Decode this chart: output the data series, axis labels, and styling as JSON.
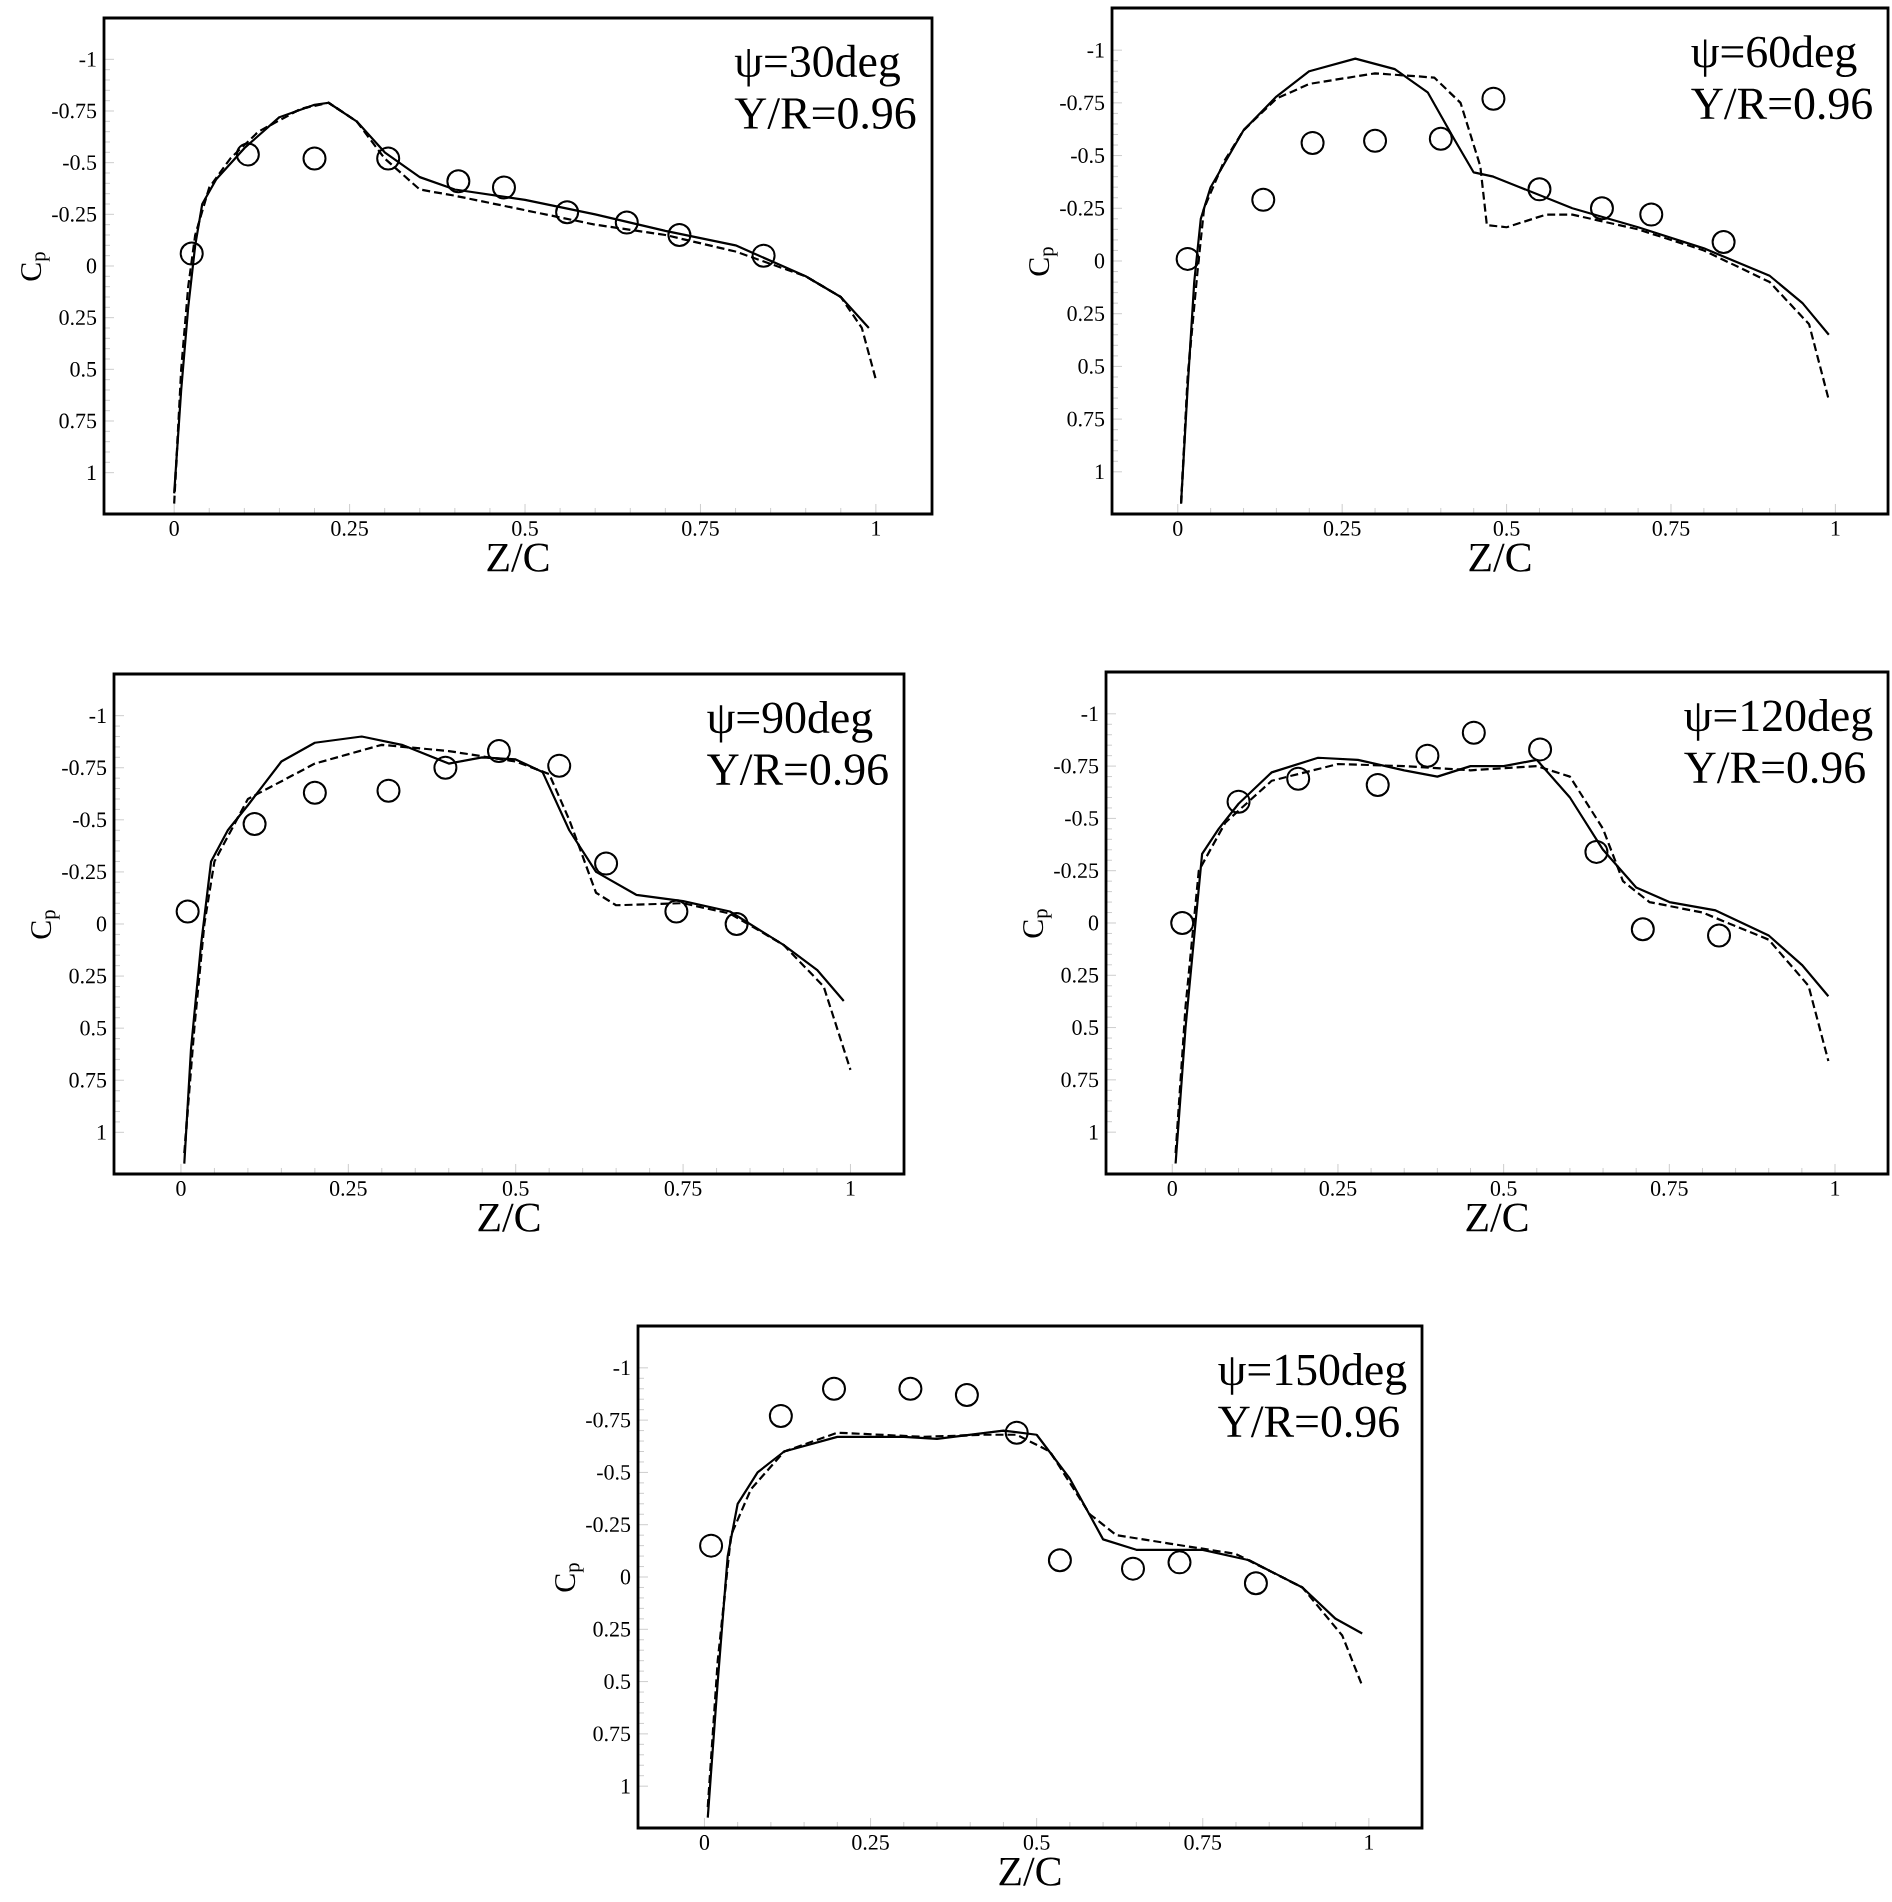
{
  "chart_data": [
    {
      "type": "line",
      "xlabel": "Z/C",
      "ylabel": "C$_{p}$",
      "xlim": [
        -0.1,
        1.08
      ],
      "ylim": [
        1.2,
        -1.2
      ],
      "xticks": [
        0,
        0.25,
        0.5,
        0.75,
        1
      ],
      "yticks": [
        -1,
        -0.75,
        -0.5,
        -0.25,
        0,
        0.25,
        0.5,
        0.75,
        1
      ],
      "annotations": [
        "ψ=30deg",
        "Y/R=0.96"
      ],
      "series": [
        {
          "type": "line",
          "line_style": "solid",
          "color": "#000000",
          "x": [
            0.0,
            0.01,
            0.02,
            0.03,
            0.04,
            0.06,
            0.1,
            0.15,
            0.2,
            0.22,
            0.26,
            0.3,
            0.35,
            0.4,
            0.5,
            0.6,
            0.7,
            0.8,
            0.9,
            0.95,
            0.99
          ],
          "values": [
            1.1,
            0.6,
            0.2,
            -0.1,
            -0.3,
            -0.42,
            -0.57,
            -0.72,
            -0.78,
            -0.79,
            -0.7,
            -0.55,
            -0.43,
            -0.37,
            -0.32,
            -0.25,
            -0.17,
            -0.1,
            0.05,
            0.15,
            0.3
          ]
        },
        {
          "type": "line",
          "line_style": "dashed",
          "color": "#000000",
          "x": [
            0.0,
            0.01,
            0.02,
            0.03,
            0.05,
            0.08,
            0.12,
            0.18,
            0.22,
            0.26,
            0.3,
            0.35,
            0.4,
            0.5,
            0.6,
            0.7,
            0.8,
            0.9,
            0.95,
            0.98,
            1.0
          ],
          "values": [
            1.15,
            0.5,
            0.1,
            -0.15,
            -0.38,
            -0.52,
            -0.65,
            -0.76,
            -0.79,
            -0.7,
            -0.52,
            -0.37,
            -0.34,
            -0.27,
            -0.2,
            -0.15,
            -0.07,
            0.05,
            0.15,
            0.3,
            0.55
          ]
        },
        {
          "type": "scatter",
          "marker": "circle",
          "color": "#000000",
          "x": [
            0.025,
            0.105,
            0.2,
            0.305,
            0.405,
            0.47,
            0.56,
            0.645,
            0.72,
            0.84
          ],
          "values": [
            -0.06,
            -0.54,
            -0.52,
            -0.52,
            -0.41,
            -0.38,
            -0.26,
            -0.21,
            -0.15,
            -0.05
          ]
        }
      ]
    },
    {
      "type": "line",
      "xlabel": "Z/C",
      "ylabel": "C$_{p}$",
      "xlim": [
        -0.1,
        1.08
      ],
      "ylim": [
        1.2,
        -1.2
      ],
      "xticks": [
        0,
        0.25,
        0.5,
        0.75,
        1
      ],
      "yticks": [
        -1,
        -0.75,
        -0.5,
        -0.25,
        0,
        0.25,
        0.5,
        0.75,
        1
      ],
      "annotations": [
        "ψ=60deg",
        "Y/R=0.96"
      ],
      "series": [
        {
          "type": "line",
          "line_style": "solid",
          "color": "#000000",
          "x": [
            0.005,
            0.015,
            0.025,
            0.035,
            0.05,
            0.1,
            0.15,
            0.2,
            0.27,
            0.33,
            0.38,
            0.42,
            0.45,
            0.48,
            0.52,
            0.6,
            0.7,
            0.8,
            0.9,
            0.95,
            0.99
          ],
          "values": [
            1.15,
            0.6,
            0.1,
            -0.2,
            -0.35,
            -0.62,
            -0.78,
            -0.9,
            -0.96,
            -0.91,
            -0.8,
            -0.58,
            -0.42,
            -0.4,
            -0.35,
            -0.25,
            -0.16,
            -0.06,
            0.07,
            0.2,
            0.35
          ]
        },
        {
          "type": "line",
          "line_style": "dashed",
          "color": "#000000",
          "x": [
            0.005,
            0.015,
            0.03,
            0.04,
            0.07,
            0.1,
            0.15,
            0.2,
            0.3,
            0.39,
            0.43,
            0.46,
            0.47,
            0.5,
            0.56,
            0.6,
            0.7,
            0.8,
            0.9,
            0.96,
            0.99
          ],
          "values": [
            1.15,
            0.55,
            0.05,
            -0.25,
            -0.47,
            -0.62,
            -0.77,
            -0.84,
            -0.89,
            -0.87,
            -0.75,
            -0.45,
            -0.17,
            -0.16,
            -0.22,
            -0.22,
            -0.15,
            -0.05,
            0.1,
            0.3,
            0.66
          ]
        },
        {
          "type": "scatter",
          "marker": "circle",
          "color": "#000000",
          "x": [
            0.015,
            0.13,
            0.205,
            0.3,
            0.4,
            0.48,
            0.55,
            0.645,
            0.72,
            0.83
          ],
          "values": [
            -0.01,
            -0.29,
            -0.56,
            -0.57,
            -0.58,
            -0.77,
            -0.34,
            -0.25,
            -0.22,
            -0.09
          ]
        }
      ]
    },
    {
      "type": "line",
      "xlabel": "Z/C",
      "ylabel": "C$_{p}$",
      "xlim": [
        -0.1,
        1.08
      ],
      "ylim": [
        1.2,
        -1.2
      ],
      "xticks": [
        0,
        0.25,
        0.5,
        0.75,
        1
      ],
      "yticks": [
        -1,
        -0.75,
        -0.5,
        -0.25,
        0,
        0.25,
        0.5,
        0.75,
        1
      ],
      "annotations": [
        "ψ=90deg",
        "Y/R=0.96"
      ],
      "series": [
        {
          "type": "line",
          "line_style": "solid",
          "color": "#000000",
          "x": [
            0.005,
            0.015,
            0.03,
            0.045,
            0.07,
            0.1,
            0.15,
            0.2,
            0.27,
            0.33,
            0.4,
            0.45,
            0.5,
            0.54,
            0.58,
            0.62,
            0.68,
            0.75,
            0.82,
            0.9,
            0.95,
            0.99
          ],
          "values": [
            1.15,
            0.6,
            0.1,
            -0.3,
            -0.45,
            -0.57,
            -0.78,
            -0.87,
            -0.9,
            -0.86,
            -0.77,
            -0.8,
            -0.79,
            -0.73,
            -0.45,
            -0.25,
            -0.14,
            -0.11,
            -0.06,
            0.1,
            0.22,
            0.37
          ]
        },
        {
          "type": "line",
          "line_style": "dashed",
          "color": "#000000",
          "x": [
            0.005,
            0.02,
            0.035,
            0.05,
            0.1,
            0.2,
            0.3,
            0.4,
            0.5,
            0.55,
            0.58,
            0.62,
            0.65,
            0.75,
            0.82,
            0.9,
            0.96,
            1.0
          ],
          "values": [
            1.1,
            0.5,
            0.0,
            -0.3,
            -0.6,
            -0.77,
            -0.86,
            -0.83,
            -0.78,
            -0.72,
            -0.5,
            -0.15,
            -0.09,
            -0.1,
            -0.05,
            0.1,
            0.3,
            0.7
          ]
        },
        {
          "type": "scatter",
          "marker": "circle",
          "color": "#000000",
          "x": [
            0.01,
            0.11,
            0.2,
            0.31,
            0.395,
            0.475,
            0.565,
            0.635,
            0.74,
            0.83
          ],
          "values": [
            -0.06,
            -0.48,
            -0.63,
            -0.64,
            -0.75,
            -0.83,
            -0.76,
            -0.29,
            -0.06,
            0.0
          ]
        }
      ]
    },
    {
      "type": "line",
      "xlabel": "Z/C",
      "ylabel": "C$_{p}$",
      "xlim": [
        -0.1,
        1.08
      ],
      "ylim": [
        1.2,
        -1.2
      ],
      "xticks": [
        0,
        0.25,
        0.5,
        0.75,
        1
      ],
      "yticks": [
        -1,
        -0.75,
        -0.5,
        -0.25,
        0,
        0.25,
        0.5,
        0.75,
        1
      ],
      "annotations": [
        "ψ=120deg",
        "Y/R=0.96"
      ],
      "series": [
        {
          "type": "line",
          "line_style": "solid",
          "color": "#000000",
          "x": [
            0.005,
            0.02,
            0.035,
            0.045,
            0.07,
            0.1,
            0.15,
            0.22,
            0.28,
            0.35,
            0.4,
            0.45,
            0.5,
            0.55,
            0.6,
            0.65,
            0.7,
            0.75,
            0.82,
            0.9,
            0.95,
            0.99
          ],
          "values": [
            1.15,
            0.5,
            0.0,
            -0.33,
            -0.45,
            -0.57,
            -0.72,
            -0.79,
            -0.78,
            -0.73,
            -0.7,
            -0.75,
            -0.75,
            -0.78,
            -0.6,
            -0.35,
            -0.17,
            -0.1,
            -0.06,
            0.06,
            0.2,
            0.35
          ]
        },
        {
          "type": "line",
          "line_style": "dashed",
          "color": "#000000",
          "x": [
            0.005,
            0.02,
            0.04,
            0.08,
            0.15,
            0.25,
            0.35,
            0.45,
            0.55,
            0.6,
            0.65,
            0.68,
            0.72,
            0.8,
            0.9,
            0.96,
            0.99
          ],
          "values": [
            1.1,
            0.4,
            -0.25,
            -0.48,
            -0.68,
            -0.76,
            -0.75,
            -0.73,
            -0.75,
            -0.7,
            -0.45,
            -0.2,
            -0.1,
            -0.05,
            0.08,
            0.3,
            0.66
          ]
        },
        {
          "type": "scatter",
          "marker": "circle",
          "color": "#000000",
          "x": [
            0.015,
            0.1,
            0.19,
            0.31,
            0.385,
            0.455,
            0.555,
            0.64,
            0.71,
            0.825
          ],
          "values": [
            0.0,
            -0.58,
            -0.69,
            -0.66,
            -0.8,
            -0.91,
            -0.83,
            -0.34,
            0.03,
            0.06
          ]
        }
      ]
    },
    {
      "type": "line",
      "xlabel": "Z/C",
      "ylabel": "C$_{p}$",
      "xlim": [
        -0.1,
        1.08
      ],
      "ylim": [
        1.2,
        -1.2
      ],
      "xticks": [
        0,
        0.25,
        0.5,
        0.75,
        1
      ],
      "yticks": [
        -1,
        -0.75,
        -0.5,
        -0.25,
        0,
        0.25,
        0.5,
        0.75,
        1
      ],
      "annotations": [
        "ψ=150deg",
        "Y/R=0.96"
      ],
      "series": [
        {
          "type": "line",
          "line_style": "solid",
          "color": "#000000",
          "x": [
            0.005,
            0.02,
            0.035,
            0.05,
            0.08,
            0.12,
            0.2,
            0.3,
            0.35,
            0.45,
            0.5,
            0.55,
            0.6,
            0.65,
            0.75,
            0.82,
            0.9,
            0.95,
            0.99
          ],
          "values": [
            1.15,
            0.5,
            -0.1,
            -0.35,
            -0.5,
            -0.6,
            -0.67,
            -0.67,
            -0.66,
            -0.7,
            -0.68,
            -0.47,
            -0.18,
            -0.13,
            -0.13,
            -0.08,
            0.05,
            0.2,
            0.27
          ]
        },
        {
          "type": "line",
          "line_style": "dashed",
          "color": "#000000",
          "x": [
            0.005,
            0.02,
            0.04,
            0.07,
            0.12,
            0.2,
            0.33,
            0.42,
            0.47,
            0.52,
            0.58,
            0.62,
            0.7,
            0.8,
            0.9,
            0.96,
            0.99
          ],
          "values": [
            1.1,
            0.4,
            -0.2,
            -0.42,
            -0.6,
            -0.69,
            -0.67,
            -0.68,
            -0.68,
            -0.6,
            -0.3,
            -0.2,
            -0.16,
            -0.11,
            0.05,
            0.28,
            0.52
          ]
        },
        {
          "type": "scatter",
          "marker": "circle",
          "color": "#000000",
          "x": [
            0.01,
            0.115,
            0.195,
            0.31,
            0.395,
            0.47,
            0.535,
            0.645,
            0.715,
            0.83
          ],
          "values": [
            -0.15,
            -0.77,
            -0.9,
            -0.9,
            -0.87,
            -0.69,
            -0.08,
            -0.04,
            -0.07,
            0.03
          ]
        }
      ]
    }
  ]
}
